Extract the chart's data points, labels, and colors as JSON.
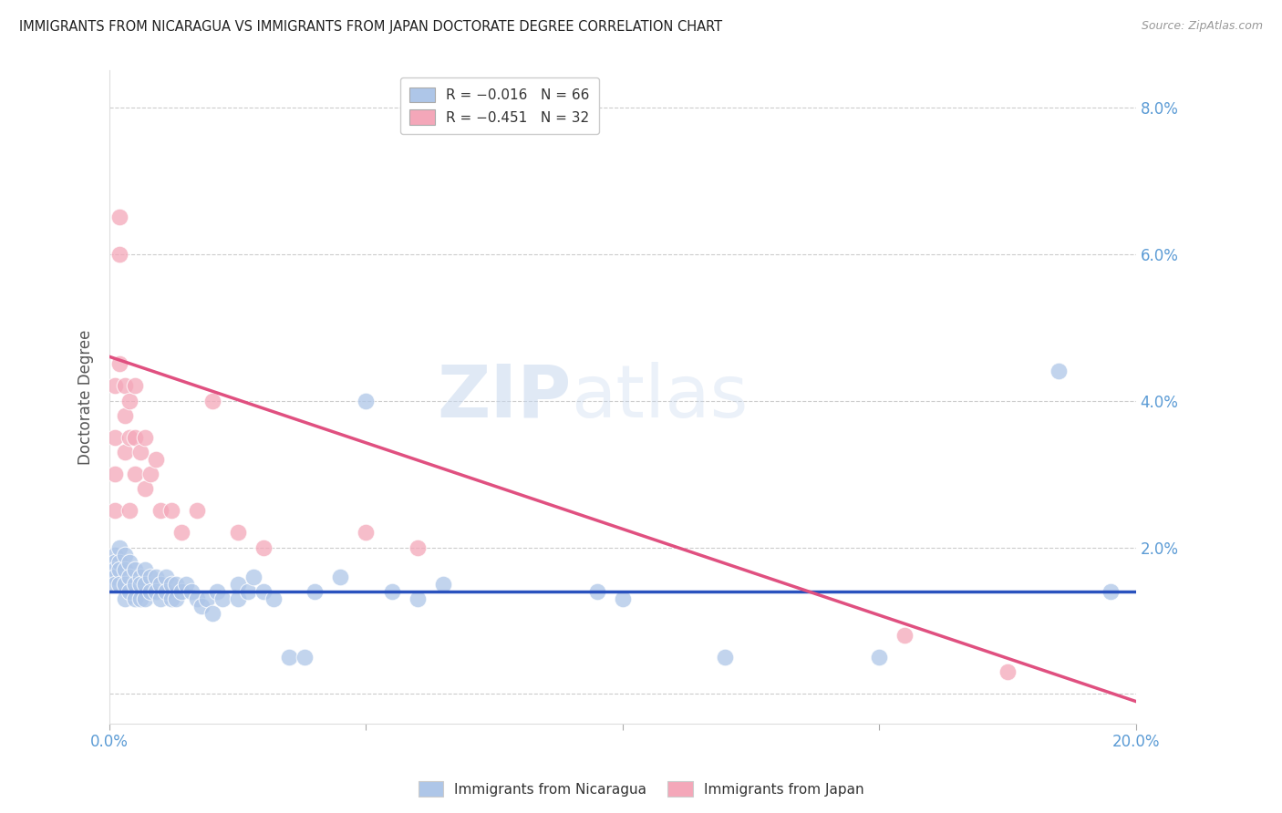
{
  "title": "IMMIGRANTS FROM NICARAGUA VS IMMIGRANTS FROM JAPAN DOCTORATE DEGREE CORRELATION CHART",
  "source": "Source: ZipAtlas.com",
  "ylabel": "Doctorate Degree",
  "watermark": "ZIPatlas",
  "xlim": [
    0.0,
    0.2
  ],
  "ylim": [
    -0.004,
    0.085
  ],
  "yticks": [
    0.0,
    0.02,
    0.04,
    0.06,
    0.08
  ],
  "ytick_labels": [
    "",
    "2.0%",
    "4.0%",
    "6.0%",
    "8.0%"
  ],
  "xticks": [
    0.0,
    0.05,
    0.1,
    0.15,
    0.2
  ],
  "xtick_labels": [
    "0.0%",
    "",
    "",
    "",
    "20.0%"
  ],
  "nicaragua_color": "#aec6e8",
  "japan_color": "#f4a7b9",
  "nicaragua_line_color": "#2a52be",
  "japan_line_color": "#e05080",
  "background_color": "#ffffff",
  "grid_color": "#cccccc",
  "title_color": "#222222",
  "axis_color": "#5b9bd5",
  "nicaragua_line_y0": 0.014,
  "nicaragua_line_y1": 0.014,
  "japan_line_y0": 0.046,
  "japan_line_y1": -0.001,
  "legend_r1": "R = −0.016",
  "legend_n1": "N = 66",
  "legend_r2": "R = −0.451",
  "legend_n2": "N = 32",
  "nic_x": [
    0.001,
    0.001,
    0.001,
    0.001,
    0.001,
    0.002,
    0.002,
    0.002,
    0.002,
    0.003,
    0.003,
    0.003,
    0.003,
    0.004,
    0.004,
    0.004,
    0.005,
    0.005,
    0.005,
    0.006,
    0.006,
    0.006,
    0.007,
    0.007,
    0.007,
    0.008,
    0.008,
    0.009,
    0.009,
    0.01,
    0.01,
    0.011,
    0.011,
    0.012,
    0.012,
    0.013,
    0.013,
    0.014,
    0.015,
    0.016,
    0.017,
    0.018,
    0.019,
    0.02,
    0.021,
    0.022,
    0.025,
    0.025,
    0.027,
    0.028,
    0.03,
    0.032,
    0.035,
    0.038,
    0.04,
    0.045,
    0.05,
    0.055,
    0.06,
    0.065,
    0.095,
    0.1,
    0.12,
    0.15,
    0.185,
    0.195
  ],
  "nic_y": [
    0.019,
    0.018,
    0.017,
    0.016,
    0.015,
    0.02,
    0.018,
    0.017,
    0.015,
    0.019,
    0.017,
    0.015,
    0.013,
    0.018,
    0.016,
    0.014,
    0.017,
    0.015,
    0.013,
    0.016,
    0.015,
    0.013,
    0.017,
    0.015,
    0.013,
    0.016,
    0.014,
    0.016,
    0.014,
    0.015,
    0.013,
    0.016,
    0.014,
    0.015,
    0.013,
    0.015,
    0.013,
    0.014,
    0.015,
    0.014,
    0.013,
    0.012,
    0.013,
    0.011,
    0.014,
    0.013,
    0.015,
    0.013,
    0.014,
    0.016,
    0.014,
    0.013,
    0.005,
    0.005,
    0.014,
    0.016,
    0.04,
    0.014,
    0.013,
    0.015,
    0.014,
    0.013,
    0.005,
    0.005,
    0.044,
    0.014
  ],
  "jap_x": [
    0.001,
    0.001,
    0.001,
    0.001,
    0.002,
    0.002,
    0.002,
    0.003,
    0.003,
    0.003,
    0.004,
    0.004,
    0.004,
    0.005,
    0.005,
    0.005,
    0.006,
    0.007,
    0.007,
    0.008,
    0.009,
    0.01,
    0.012,
    0.014,
    0.017,
    0.02,
    0.025,
    0.03,
    0.05,
    0.06,
    0.155,
    0.175
  ],
  "jap_y": [
    0.042,
    0.035,
    0.03,
    0.025,
    0.065,
    0.06,
    0.045,
    0.042,
    0.038,
    0.033,
    0.04,
    0.035,
    0.025,
    0.042,
    0.035,
    0.03,
    0.033,
    0.035,
    0.028,
    0.03,
    0.032,
    0.025,
    0.025,
    0.022,
    0.025,
    0.04,
    0.022,
    0.02,
    0.022,
    0.02,
    0.008,
    0.003
  ]
}
